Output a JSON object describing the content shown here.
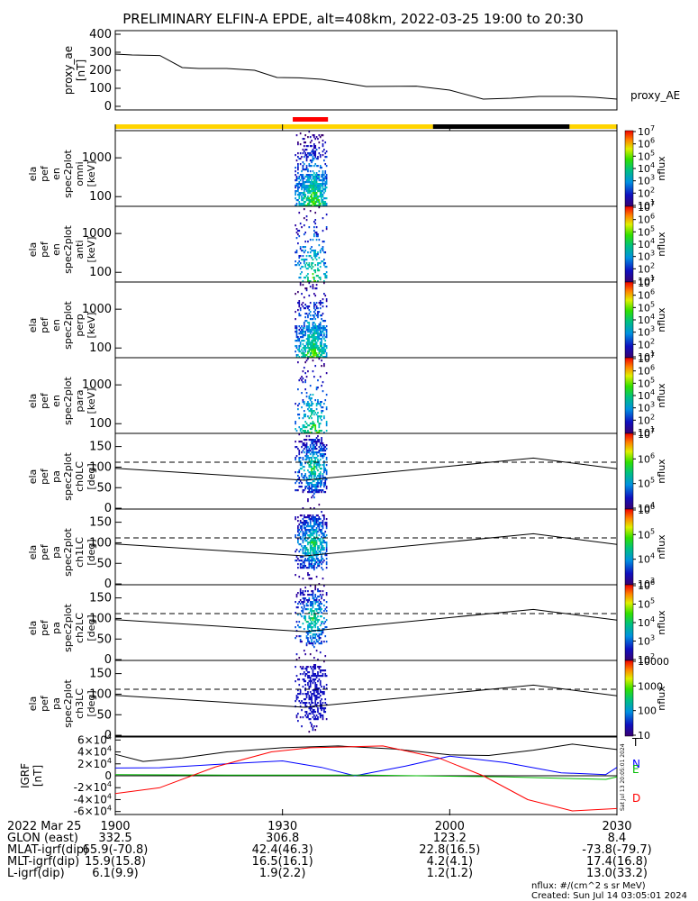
{
  "title": "PRELIMINARY ELFIN-A EPDE, alt=408km, 2022-03-25 19:00 to 20:30",
  "chart_data": {
    "type": "multi-panel spectrogram",
    "x_range": [
      "19:00",
      "20:30"
    ],
    "proxy_ae": {
      "type": "line",
      "ylabel": [
        "proxy_ae",
        "[nT]"
      ],
      "legend": "proxy_AE",
      "yticks": [
        "0",
        "100",
        "200",
        "300",
        "400"
      ],
      "ylim": [
        -20,
        420
      ],
      "points": [
        {
          "t": 0,
          "v": 290
        },
        {
          "t": 3,
          "v": 285
        },
        {
          "t": 8,
          "v": 282
        },
        {
          "t": 12,
          "v": 215
        },
        {
          "t": 15,
          "v": 210
        },
        {
          "t": 20,
          "v": 210
        },
        {
          "t": 25,
          "v": 200
        },
        {
          "t": 29,
          "v": 160
        },
        {
          "t": 33,
          "v": 158
        },
        {
          "t": 37,
          "v": 150
        },
        {
          "t": 45,
          "v": 110
        },
        {
          "t": 54,
          "v": 112
        },
        {
          "t": 60,
          "v": 90
        },
        {
          "t": 66,
          "v": 40
        },
        {
          "t": 71,
          "v": 45
        },
        {
          "t": 76,
          "v": 55
        },
        {
          "t": 82,
          "v": 55
        },
        {
          "t": 86,
          "v": 50
        },
        {
          "t": 90,
          "v": 40
        }
      ]
    },
    "status_bar": [
      {
        "from": 0,
        "to": 57,
        "color": "#ffd400"
      },
      {
        "from": 57,
        "to": 81.5,
        "color": "#000000"
      },
      {
        "from": 81.5,
        "to": 90,
        "color": "#ffd400"
      }
    ],
    "red_marker": {
      "from": 32,
      "to": 38,
      "color": "#ff0000"
    },
    "energy_panels": [
      {
        "label": [
          "ela",
          "pef",
          "en",
          "spec2plot",
          "omni",
          "[keV]"
        ],
        "yticks": [
          "100",
          "1000"
        ],
        "colorbar_ticks": [
          "10^1",
          "10^2",
          "10^3",
          "10^4",
          "10^5",
          "10^6",
          "10^7"
        ],
        "colorbar_label": "nflux"
      },
      {
        "label": [
          "ela",
          "pef",
          "en",
          "spec2plot",
          "anti",
          "[keV]"
        ],
        "yticks": [
          "100",
          "1000"
        ],
        "colorbar_ticks": [
          "10^1",
          "10^2",
          "10^3",
          "10^4",
          "10^5",
          "10^6",
          "10^7"
        ],
        "colorbar_label": "nflux"
      },
      {
        "label": [
          "ela",
          "pef",
          "en",
          "spec2plot",
          "perp",
          "[keV]"
        ],
        "yticks": [
          "100",
          "1000"
        ],
        "colorbar_ticks": [
          "10^1",
          "10^2",
          "10^3",
          "10^4",
          "10^5",
          "10^6",
          "10^7"
        ],
        "colorbar_label": "nflux"
      },
      {
        "label": [
          "ela",
          "pef",
          "en",
          "spec2plot",
          "para",
          "[keV]"
        ],
        "yticks": [
          "100",
          "1000"
        ],
        "colorbar_ticks": [
          "10^1",
          "10^2",
          "10^3",
          "10^4",
          "10^5",
          "10^6",
          "10^7"
        ],
        "colorbar_label": "nflux"
      }
    ],
    "pa_panels": [
      {
        "label": [
          "ela",
          "pef",
          "pa",
          "spec2plot",
          "ch0LC",
          "[deg]"
        ],
        "yticks": [
          "0",
          "50",
          "100",
          "150"
        ],
        "colorbar_ticks": [
          "10^4",
          "10^5",
          "10^6",
          "10^7"
        ],
        "colorbar_label": "nflux"
      },
      {
        "label": [
          "ela",
          "pef",
          "pa",
          "spec2plot",
          "ch1LC",
          "[deg]"
        ],
        "yticks": [
          "0",
          "50",
          "100",
          "150"
        ],
        "colorbar_ticks": [
          "10^3",
          "10^4",
          "10^5",
          "10^6"
        ],
        "colorbar_label": "nflux"
      },
      {
        "label": [
          "ela",
          "pef",
          "pa",
          "spec2plot",
          "ch2LC",
          "[deg]"
        ],
        "yticks": [
          "0",
          "50",
          "100",
          "150"
        ],
        "colorbar_ticks": [
          "10^2",
          "10^3",
          "10^4",
          "10^5",
          "10^6"
        ],
        "colorbar_label": "nflux"
      },
      {
        "label": [
          "ela",
          "pef",
          "pa",
          "spec2plot",
          "ch3LC",
          "[deg]"
        ],
        "yticks": [
          "0",
          "50",
          "100",
          "150"
        ],
        "colorbar_ticks": [
          "10",
          "100",
          "1000",
          "10000"
        ],
        "colorbar_label": "nflux"
      }
    ],
    "lc_line": [
      {
        "t": 0,
        "v": 97
      },
      {
        "t": 34,
        "v": 68
      },
      {
        "t": 75,
        "v": 122
      },
      {
        "t": 90,
        "v": 96
      }
    ],
    "alc_dashed_value": 112,
    "igrf": {
      "ylabel": [
        "IGRF",
        "[nT]"
      ],
      "yticks": [
        "-6×10^4",
        "-4×10^4",
        "-2×10^4",
        "0",
        "2×10^4",
        "4×10^4",
        "6×10^4"
      ],
      "ylim": [
        -65000,
        65000
      ],
      "legend": [
        {
          "name": "T",
          "color": "#000000"
        },
        {
          "name": "N",
          "color": "#0000ff"
        },
        {
          "name": "E",
          "color": "#00bb00"
        },
        {
          "name": "D",
          "color": "#ff0000"
        }
      ],
      "series": {
        "T": [
          {
            "t": 0,
            "v": 36000
          },
          {
            "t": 5,
            "v": 24000
          },
          {
            "t": 12,
            "v": 30000
          },
          {
            "t": 20,
            "v": 40000
          },
          {
            "t": 30,
            "v": 47000
          },
          {
            "t": 40,
            "v": 50000
          },
          {
            "t": 50,
            "v": 45000
          },
          {
            "t": 60,
            "v": 35000
          },
          {
            "t": 67,
            "v": 34000
          },
          {
            "t": 75,
            "v": 43000
          },
          {
            "t": 82,
            "v": 53000
          },
          {
            "t": 90,
            "v": 44000
          }
        ],
        "N": [
          {
            "t": 0,
            "v": 13000
          },
          {
            "t": 8,
            "v": 13500
          },
          {
            "t": 20,
            "v": 20000
          },
          {
            "t": 30,
            "v": 25000
          },
          {
            "t": 37,
            "v": 14000
          },
          {
            "t": 43,
            "v": 0
          },
          {
            "t": 52,
            "v": 16000
          },
          {
            "t": 60,
            "v": 33000
          },
          {
            "t": 70,
            "v": 22000
          },
          {
            "t": 80,
            "v": 5000
          },
          {
            "t": 88,
            "v": 2000
          },
          {
            "t": 90,
            "v": 14000
          }
        ],
        "E": [
          {
            "t": 0,
            "v": 2000
          },
          {
            "t": 20,
            "v": 1000
          },
          {
            "t": 45,
            "v": 1000
          },
          {
            "t": 70,
            "v": -2000
          },
          {
            "t": 88,
            "v": -6000
          },
          {
            "t": 90,
            "v": -2000
          }
        ],
        "D": [
          {
            "t": 0,
            "v": -30000
          },
          {
            "t": 8,
            "v": -20000
          },
          {
            "t": 18,
            "v": 15000
          },
          {
            "t": 28,
            "v": 40000
          },
          {
            "t": 35,
            "v": 47000
          },
          {
            "t": 48,
            "v": 50000
          },
          {
            "t": 58,
            "v": 30000
          },
          {
            "t": 66,
            "v": 0
          },
          {
            "t": 74,
            "v": -40000
          },
          {
            "t": 82,
            "v": -59000
          },
          {
            "t": 90,
            "v": -55000
          }
        ]
      }
    }
  },
  "xticks": [
    "1900",
    "1930",
    "2000",
    "2030"
  ],
  "orbit_rows": [
    {
      "label": "2022 Mar 25",
      "v1900": "",
      "v1930": "",
      "v2000": "",
      "v2030": ""
    },
    {
      "label": "GLON (east)",
      "v1900": "332.5",
      "v1930": "306.8",
      "v2000": "123.2",
      "v2030": "8.4"
    },
    {
      "label": "MLAT-igrf(dip)",
      "v1900": "65.9(-70.8)",
      "v1930": "42.4(46.3)",
      "v2000": "22.8(16.5)",
      "v2030": "-73.8(-79.7)"
    },
    {
      "label": "MLT-igrf(dip)",
      "v1900": "15.9(15.8)",
      "v1930": "16.5(16.1)",
      "v2000": "4.2(4.1)",
      "v2030": "17.4(16.8)"
    },
    {
      "label": "L-igrf(dip)",
      "v1900": "6.1(9.9)",
      "v1930": "1.9(2.2)",
      "v2000": "1.2(1.2)",
      "v2030": "13.0(33.2)"
    }
  ],
  "footer": {
    "units": "nflux: #/(cm^2 s sr MeV)",
    "created": "Created: Sun Jul 14 03:05:01 2024",
    "side_stamp": "Sat Jul 13 20:05:01 2024"
  }
}
